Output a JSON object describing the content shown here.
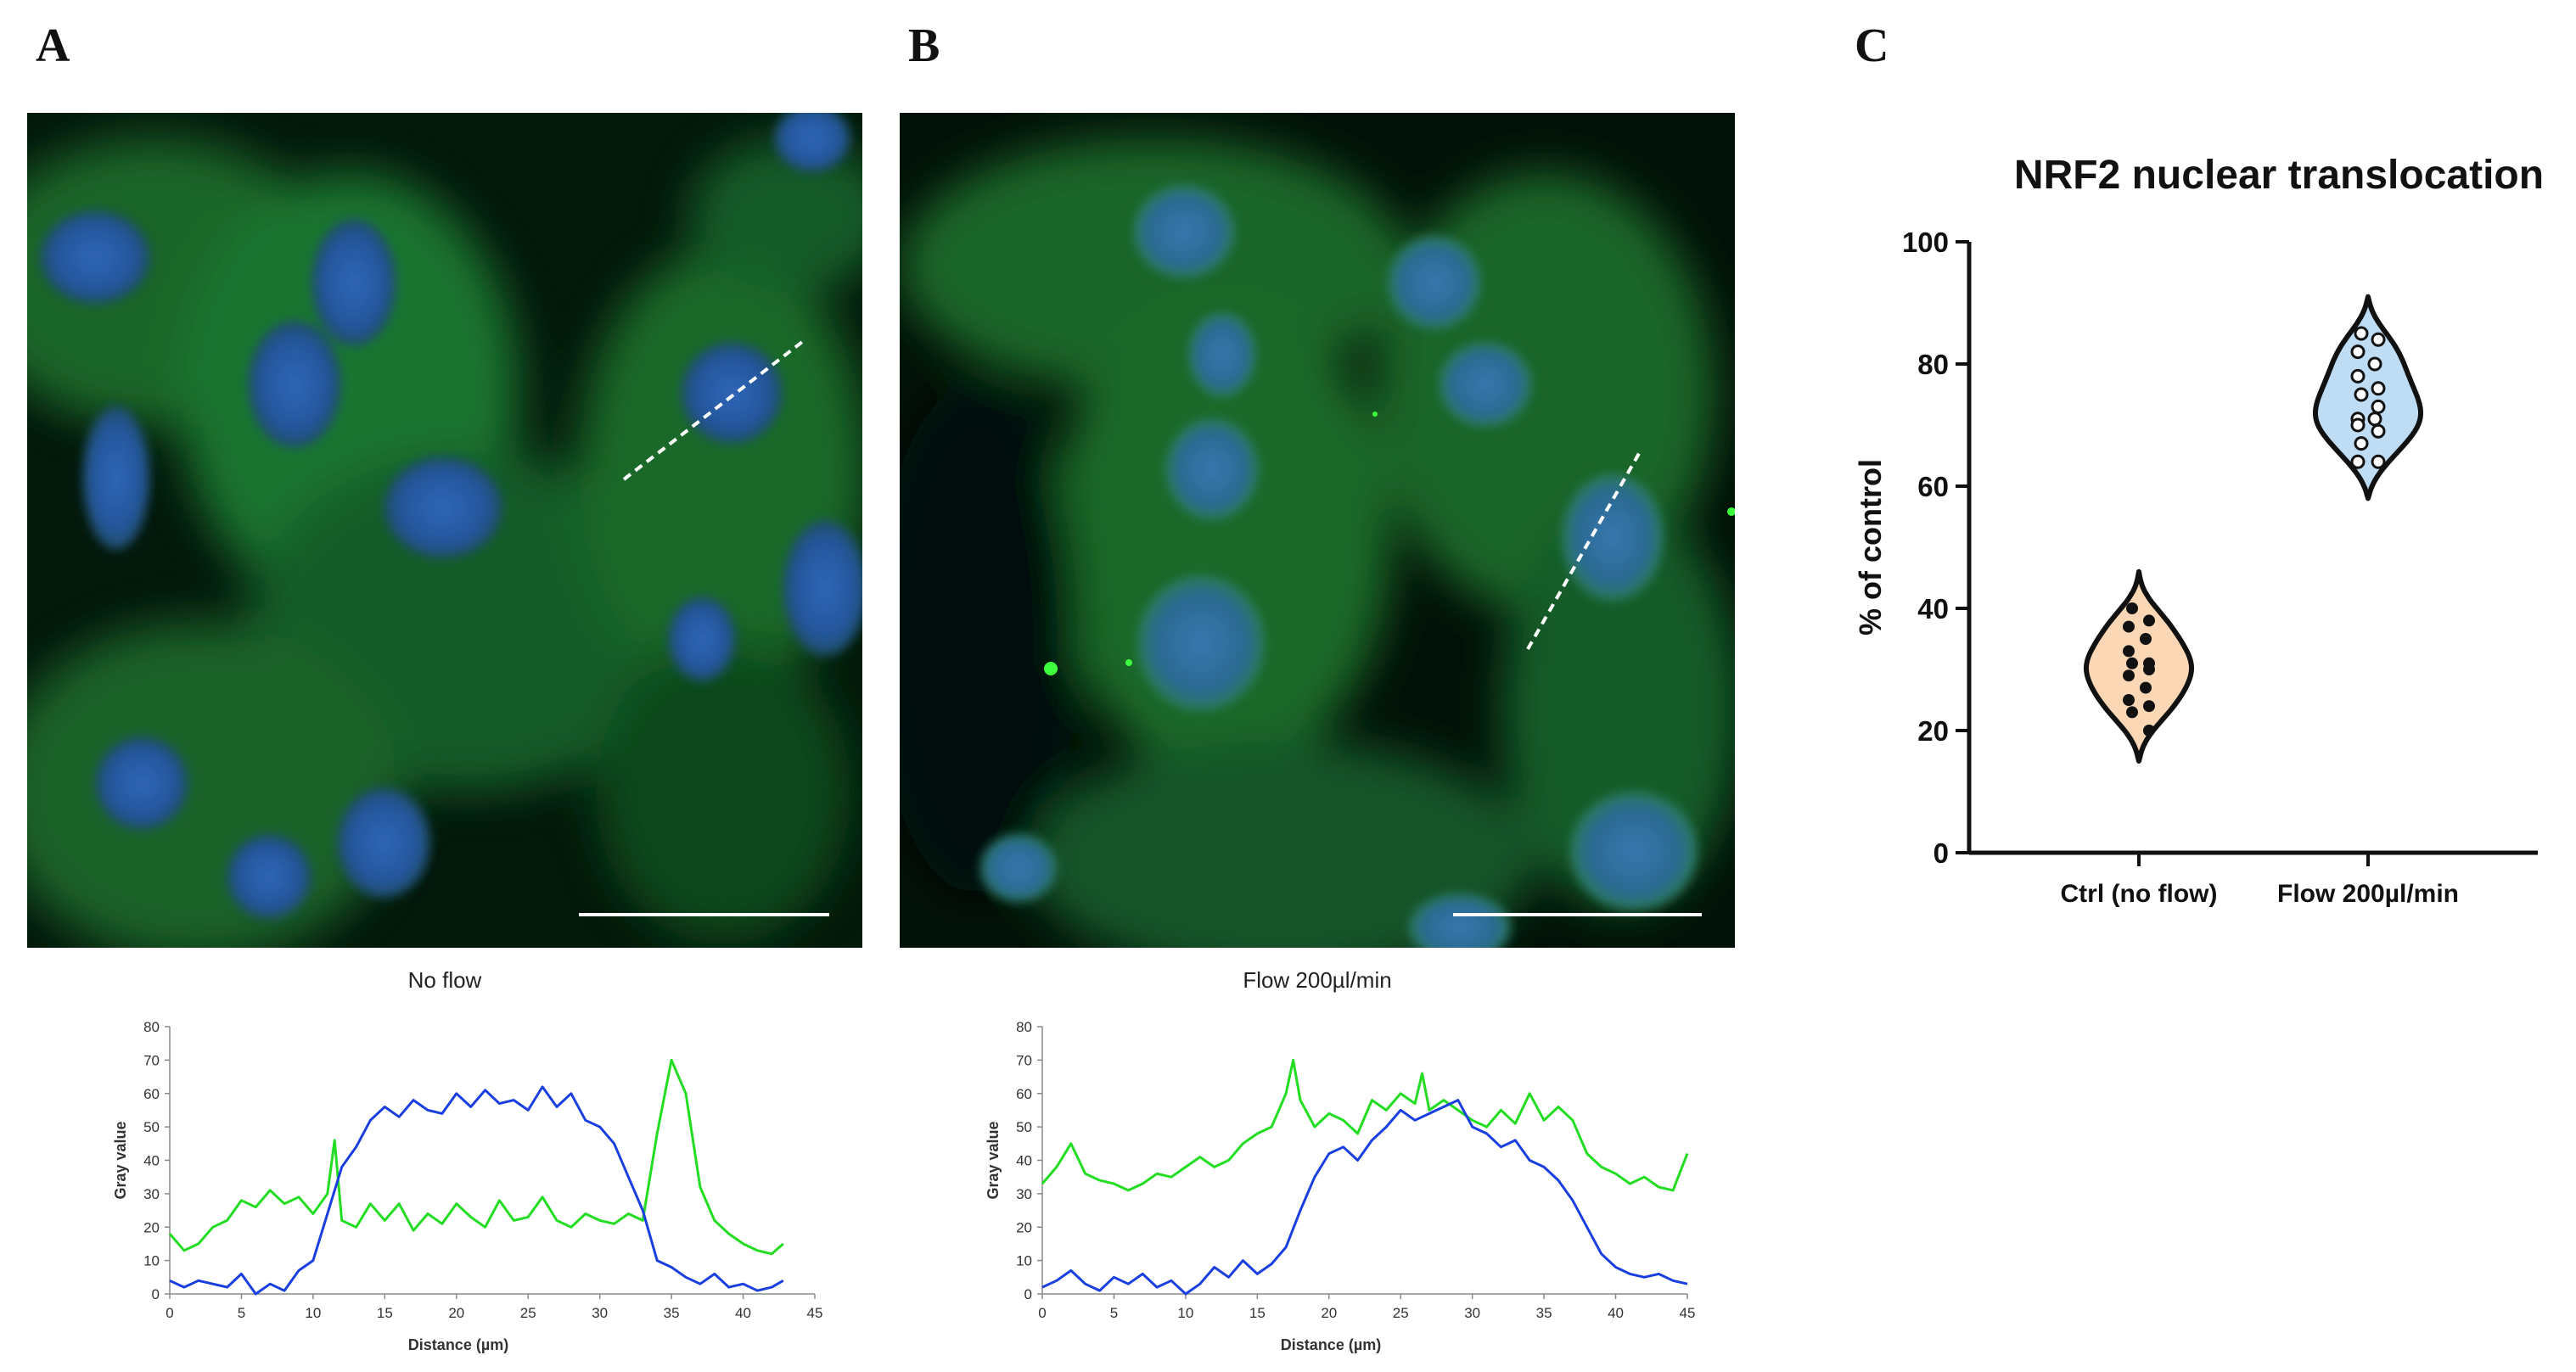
{
  "panels": {
    "A": {
      "letter": "A",
      "caption": "No flow"
    },
    "B": {
      "letter": "B",
      "caption": "Flow 200µl/min"
    },
    "C": {
      "letter": "C"
    }
  },
  "chart_data": [
    {
      "id": "profile_A",
      "type": "line",
      "title": "No flow",
      "xlabel": "Distance (µm)",
      "ylabel": "Gray value",
      "xlim": [
        0,
        45
      ],
      "ylim": [
        0,
        80
      ],
      "xticks": [
        0,
        5,
        10,
        15,
        20,
        25,
        30,
        35,
        40,
        45
      ],
      "yticks": [
        0,
        10,
        20,
        30,
        40,
        50,
        60,
        70,
        80
      ],
      "series": [
        {
          "name": "green",
          "color": "#22dd22",
          "x": [
            0,
            1,
            2,
            3,
            4,
            5,
            6,
            7,
            8,
            9,
            10,
            11,
            11.5,
            12,
            13,
            14,
            15,
            16,
            17,
            18,
            19,
            20,
            21,
            22,
            23,
            24,
            25,
            26,
            27,
            28,
            29,
            30,
            31,
            32,
            33,
            34,
            35,
            36,
            37,
            38,
            39,
            40,
            41,
            42,
            42.8
          ],
          "values": [
            18,
            13,
            15,
            20,
            22,
            28,
            26,
            31,
            27,
            29,
            24,
            30,
            46,
            22,
            20,
            27,
            22,
            27,
            19,
            24,
            21,
            27,
            23,
            20,
            28,
            22,
            23,
            29,
            22,
            20,
            24,
            22,
            21,
            24,
            22,
            48,
            70,
            60,
            32,
            22,
            18,
            15,
            13,
            12,
            15
          ]
        },
        {
          "name": "blue",
          "color": "#1a3fe0",
          "x": [
            0,
            1,
            2,
            3,
            4,
            5,
            6,
            7,
            8,
            9,
            10,
            11,
            12,
            13,
            14,
            15,
            16,
            17,
            18,
            19,
            20,
            21,
            22,
            23,
            24,
            25,
            26,
            27,
            28,
            29,
            30,
            31,
            32,
            33,
            34,
            35,
            36,
            37,
            38,
            39,
            40,
            41,
            42,
            42.8
          ],
          "values": [
            4,
            2,
            4,
            3,
            2,
            6,
            0,
            3,
            1,
            7,
            10,
            24,
            38,
            44,
            52,
            56,
            53,
            58,
            55,
            54,
            60,
            56,
            61,
            57,
            58,
            55,
            62,
            56,
            60,
            52,
            50,
            45,
            35,
            25,
            10,
            8,
            5,
            3,
            6,
            2,
            3,
            1,
            2,
            4
          ]
        }
      ]
    },
    {
      "id": "profile_B",
      "type": "line",
      "title": "Flow 200µl/min",
      "xlabel": "Distance (µm)",
      "ylabel": "Gray value",
      "xlim": [
        0,
        45
      ],
      "ylim": [
        0,
        80
      ],
      "xticks": [
        0,
        5,
        10,
        15,
        20,
        25,
        30,
        35,
        40,
        45
      ],
      "yticks": [
        0,
        10,
        20,
        30,
        40,
        50,
        60,
        70,
        80
      ],
      "series": [
        {
          "name": "green",
          "color": "#22dd22",
          "x": [
            0,
            1,
            2,
            3,
            4,
            5,
            6,
            7,
            8,
            9,
            10,
            11,
            12,
            13,
            14,
            15,
            16,
            17,
            17.5,
            18,
            19,
            20,
            21,
            22,
            23,
            24,
            25,
            26,
            26.5,
            27,
            28,
            29,
            30,
            31,
            32,
            33,
            34,
            35,
            36,
            37,
            38,
            39,
            40,
            41,
            42,
            43,
            44,
            45
          ],
          "values": [
            33,
            38,
            45,
            36,
            34,
            33,
            31,
            33,
            36,
            35,
            38,
            41,
            38,
            40,
            45,
            48,
            50,
            60,
            70,
            58,
            50,
            54,
            52,
            48,
            58,
            55,
            60,
            57,
            66,
            55,
            58,
            55,
            52,
            50,
            55,
            51,
            60,
            52,
            56,
            52,
            42,
            38,
            36,
            33,
            35,
            32,
            31,
            42
          ]
        },
        {
          "name": "blue",
          "color": "#1a3fe0",
          "x": [
            0,
            1,
            2,
            3,
            4,
            5,
            6,
            7,
            8,
            9,
            10,
            11,
            12,
            13,
            14,
            15,
            16,
            17,
            18,
            19,
            20,
            21,
            22,
            23,
            24,
            25,
            26,
            27,
            28,
            29,
            30,
            31,
            32,
            33,
            34,
            35,
            36,
            37,
            38,
            39,
            40,
            41,
            42,
            43,
            44,
            45
          ],
          "values": [
            2,
            4,
            7,
            3,
            1,
            5,
            3,
            6,
            2,
            4,
            0,
            3,
            8,
            5,
            10,
            6,
            9,
            14,
            25,
            35,
            42,
            44,
            40,
            46,
            50,
            55,
            52,
            54,
            56,
            58,
            50,
            48,
            44,
            46,
            40,
            38,
            34,
            28,
            20,
            12,
            8,
            6,
            5,
            6,
            4,
            3
          ]
        }
      ]
    },
    {
      "id": "violin_C",
      "type": "violin",
      "title": "NRF2 nuclear translocation",
      "xlabel": "",
      "ylabel": "% of control",
      "ylim": [
        0,
        100
      ],
      "yticks": [
        0,
        20,
        40,
        60,
        80,
        100
      ],
      "categories": [
        "Ctrl (no flow)",
        "Flow 200µl/min"
      ],
      "series": [
        {
          "name": "Ctrl (no flow)",
          "fill": "#fbd7b5",
          "marker": "filled",
          "points": [
            40,
            38,
            37,
            35,
            33,
            31,
            31,
            30,
            29,
            27,
            25,
            24,
            23,
            20
          ],
          "range": [
            15,
            46
          ]
        },
        {
          "name": "Flow 200µl/min",
          "fill": "#bfdcf5",
          "marker": "open",
          "points": [
            85,
            84,
            82,
            80,
            78,
            76,
            75,
            73,
            71,
            71,
            70,
            69,
            67,
            64,
            64
          ],
          "range": [
            58,
            91
          ]
        }
      ]
    }
  ]
}
